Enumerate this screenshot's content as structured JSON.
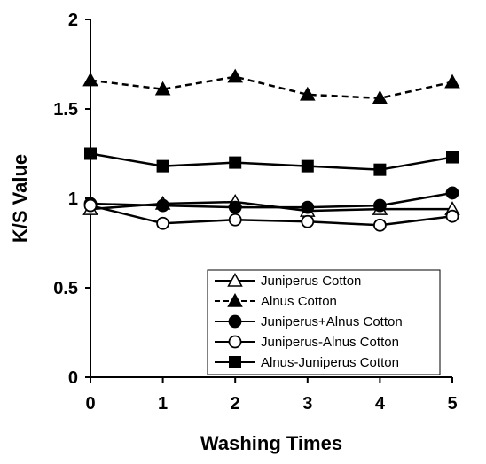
{
  "chart_data": {
    "type": "line",
    "title": "",
    "xlabel": "Washing Times",
    "ylabel": "K/S Value",
    "x": [
      0,
      1,
      2,
      3,
      4,
      5
    ],
    "xlim": [
      0,
      5
    ],
    "ylim": [
      0,
      2
    ],
    "x_ticks": [
      "0",
      "1",
      "2",
      "3",
      "4",
      "5"
    ],
    "y_ticks": [
      "0",
      "0.5",
      "1",
      "1.5",
      "2"
    ],
    "grid": false,
    "legend_position": "bottom-right",
    "series": [
      {
        "name": "Juniperus Cotton",
        "values": [
          0.94,
          0.97,
          0.98,
          0.93,
          0.94,
          0.94
        ],
        "marker": "triangle-open",
        "line_style": "solid",
        "color": "#000000"
      },
      {
        "name": "Alnus Cotton",
        "values": [
          1.66,
          1.61,
          1.68,
          1.58,
          1.56,
          1.65
        ],
        "marker": "triangle-filled",
        "line_style": "dashed",
        "color": "#000000"
      },
      {
        "name": "Juniperus+Alnus Cotton",
        "values": [
          0.97,
          0.96,
          0.95,
          0.95,
          0.96,
          1.03
        ],
        "marker": "circle-filled",
        "line_style": "solid",
        "color": "#000000"
      },
      {
        "name": "Juniperus-Alnus Cotton",
        "values": [
          0.96,
          0.86,
          0.88,
          0.87,
          0.85,
          0.9
        ],
        "marker": "circle-open",
        "line_style": "solid",
        "color": "#000000"
      },
      {
        "name": "Alnus-Juniperus Cotton",
        "values": [
          1.25,
          1.18,
          1.2,
          1.18,
          1.16,
          1.23
        ],
        "marker": "square-filled",
        "line_style": "solid",
        "color": "#000000"
      }
    ]
  }
}
